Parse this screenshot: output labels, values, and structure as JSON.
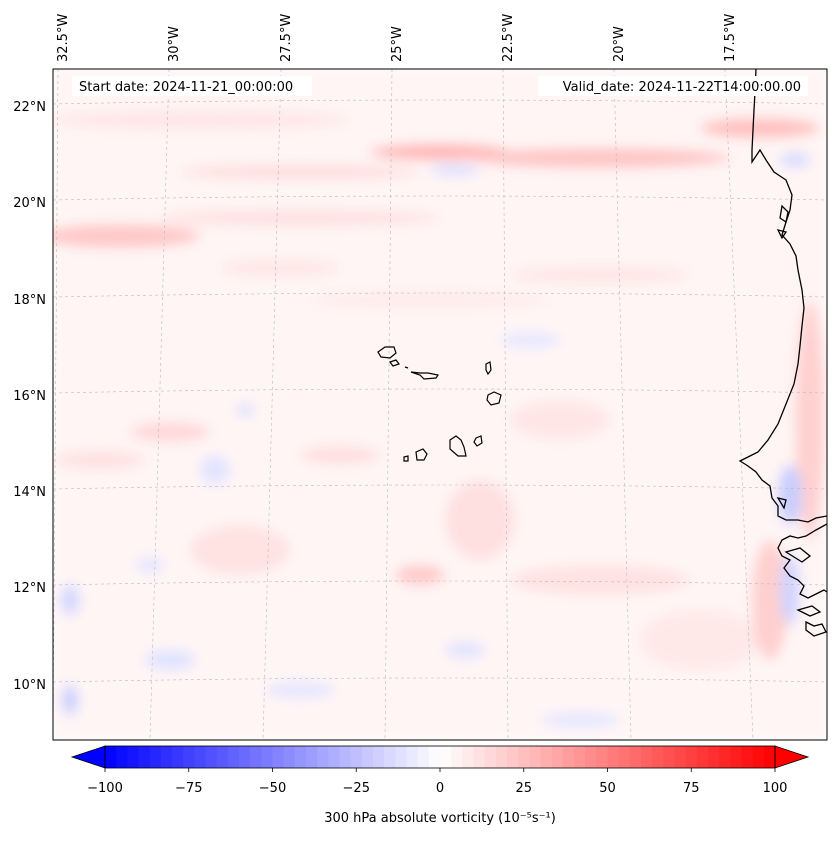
{
  "header": {
    "start_date": "Start date: 2024-11-21_00:00:00",
    "valid_date": "Valid_date: 2024-11-22T14:00:00.00"
  },
  "top_axis": {
    "labels": [
      "32.5°W",
      "30°W",
      "27.5°W",
      "25°W",
      "22.5°W",
      "20°W",
      "17.5°W"
    ]
  },
  "left_axis": {
    "labels": [
      "22°N",
      "20°N",
      "18°N",
      "16°N",
      "14°N",
      "12°N",
      "10°N"
    ]
  },
  "colorbar": {
    "ticks": [
      "−100",
      "−75",
      "−50",
      "−25",
      "0",
      "25",
      "50",
      "75",
      "100"
    ],
    "label": "300 hPa absolute vorticity (10⁻⁵s⁻¹)",
    "min": -100,
    "max": 100,
    "levels": 60,
    "color_negative": "#0000ff",
    "color_zero": "#ffffff",
    "color_positive": "#ff0000"
  },
  "map": {
    "islands": [
      "Santo Antão",
      "São Vicente",
      "Santa Luzia",
      "São Nicolau",
      "Sal",
      "Boa Vista",
      "Maio",
      "Santiago",
      "Fogo",
      "Brava"
    ],
    "coastline_color": "#000000",
    "gridline_color": "#b0b0b0"
  }
}
